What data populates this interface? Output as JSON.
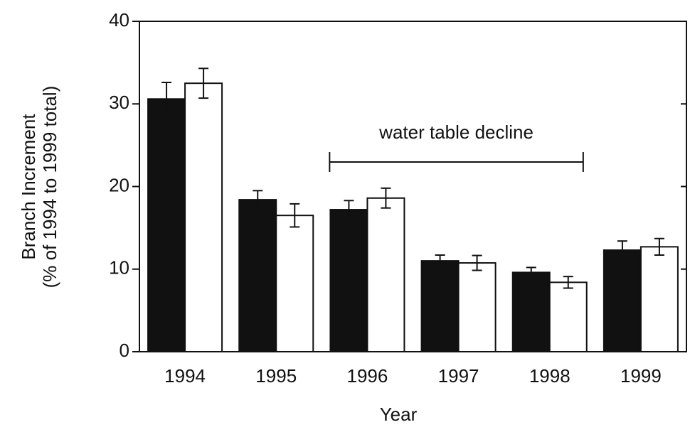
{
  "chart_data": {
    "type": "bar",
    "ylabel": [
      "Branch Increment",
      "(% of 1994 to 1999 total)"
    ],
    "xlabel": "Year",
    "annotation": "water table decline",
    "categories": [
      "1994",
      "1995",
      "1996",
      "1997",
      "1998",
      "1999"
    ],
    "series": [
      {
        "color": "#111111",
        "values": [
          30.6,
          18.4,
          17.2,
          11.0,
          9.6,
          12.3
        ],
        "errors": [
          2.0,
          1.1,
          1.1,
          0.7,
          0.6,
          1.1
        ]
      },
      {
        "color": "#ffffff",
        "values": [
          32.5,
          16.5,
          18.6,
          10.75,
          8.4,
          12.7
        ],
        "errors": [
          1.8,
          1.4,
          1.2,
          0.9,
          0.7,
          1.0
        ]
      }
    ],
    "ylim": [
      0,
      40
    ],
    "yticks": [
      0,
      10,
      20,
      30,
      40
    ]
  }
}
